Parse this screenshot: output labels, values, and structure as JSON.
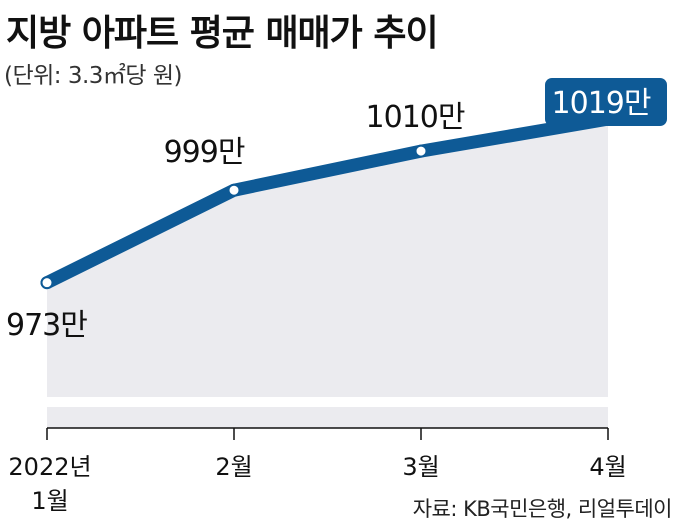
{
  "title": "지방 아파트 평균 매매가 추이",
  "unit": "(단위: 3.3㎡당 원)",
  "source": "자료: KB국민은행, 리얼투데이",
  "colors": {
    "line": "#0e5a96",
    "area": "#ebebef",
    "highlight_bg": "#0e5a96",
    "axis": "#111111"
  },
  "chart_data": {
    "type": "line",
    "title": "지방 아파트 평균 매매가 추이",
    "subtitle": "(단위: 3.3㎡당 원)",
    "categories": [
      [
        "2022년",
        "1월"
      ],
      [
        "2월"
      ],
      [
        "3월"
      ],
      [
        "4월"
      ]
    ],
    "values": [
      973,
      999,
      1010,
      1019
    ],
    "data_labels": [
      "973만",
      "999만",
      "1010만",
      "1019만"
    ],
    "highlight_index": 3,
    "ylim": [
      940,
      1030
    ],
    "area_fill": true,
    "grid": false,
    "xlabel": "",
    "ylabel": ""
  }
}
